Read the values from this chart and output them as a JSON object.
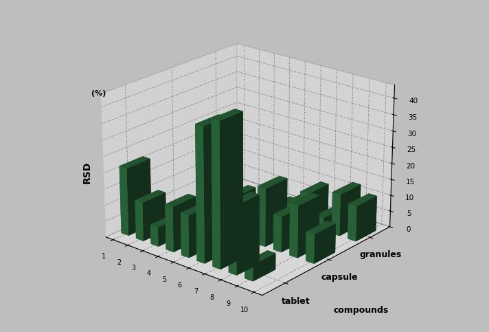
{
  "background_color": "#bebebe",
  "bar_color": "#2d6e3e",
  "pane_back_color": "#dcdcdc",
  "pane_side_color": "#d2d2d2",
  "pane_floor_color": "#d8d8d8",
  "tablet_vals": [
    21,
    12,
    6,
    14,
    13,
    41,
    44,
    21,
    5,
    0
  ],
  "capsule_vals": [
    0,
    3,
    4,
    14,
    12,
    11,
    18,
    11,
    16,
    9
  ],
  "granules_vals": [
    0,
    0,
    0,
    1,
    2,
    5,
    10,
    4,
    13,
    11
  ],
  "n_compounds": 10,
  "zlim": [
    0,
    45
  ],
  "zticks": [
    0,
    5,
    10,
    15,
    20,
    25,
    30,
    35,
    40
  ],
  "bar_width": 0.5,
  "bar_depth": 0.5,
  "elev": 22,
  "azim": -50,
  "cat_labels": [
    "tablet",
    "capsule",
    "granules"
  ],
  "compound_tick_labels": [
    "1",
    "2",
    "3",
    "4",
    "5",
    "6",
    "7",
    "8",
    "9",
    "10"
  ]
}
